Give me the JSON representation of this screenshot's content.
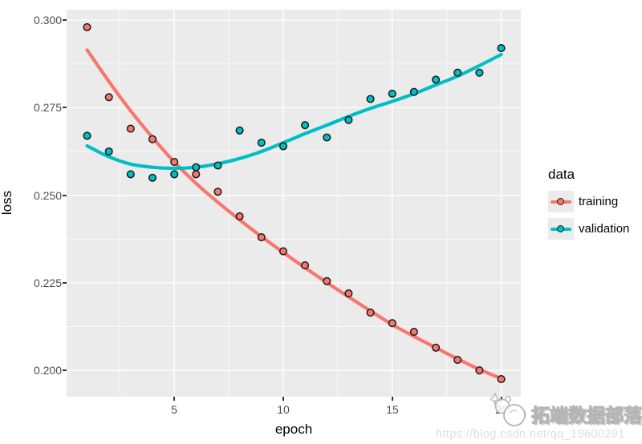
{
  "panel": {
    "background": "#EBEBEB",
    "grid_color": "#FFFFFF",
    "tick_color": "#333333",
    "tick_label_color": "#4D4D4D"
  },
  "chart_data": {
    "type": "scatter",
    "title": "",
    "xlabel": "epoch",
    "ylabel": "loss",
    "legend_title": "data",
    "legend_position": "right",
    "grid": true,
    "x": [
      1,
      2,
      3,
      4,
      5,
      6,
      7,
      8,
      9,
      10,
      11,
      12,
      13,
      14,
      15,
      16,
      17,
      18,
      19,
      20
    ],
    "xlim": [
      0.06,
      20.9
    ],
    "ylim": [
      0.1925,
      0.303
    ],
    "x_major_ticks": [
      {
        "value": 5,
        "label": "5"
      },
      {
        "value": 10,
        "label": "10"
      },
      {
        "value": 15,
        "label": "15"
      },
      {
        "value": 20,
        "label": "20"
      }
    ],
    "x_minor_ticks": [
      2.5,
      7.5,
      12.5,
      17.5
    ],
    "y_major_ticks": [
      {
        "value": 0.3,
        "label": "0.300"
      },
      {
        "value": 0.275,
        "label": "0.275"
      },
      {
        "value": 0.25,
        "label": "0.250"
      },
      {
        "value": 0.225,
        "label": "0.225"
      },
      {
        "value": 0.2,
        "label": "0.200"
      }
    ],
    "y_minor_ticks": [
      0.2875,
      0.2625,
      0.2375,
      0.2125
    ],
    "series": [
      {
        "name": "training",
        "color": "#F8766D",
        "points": [
          0.298,
          0.278,
          0.269,
          0.266,
          0.2595,
          0.256,
          0.251,
          0.244,
          0.238,
          0.234,
          0.23,
          0.2255,
          0.222,
          0.2165,
          0.2135,
          0.211,
          0.2065,
          0.203,
          0.2,
          0.1975
        ],
        "smooth": [
          0.2915,
          0.2825,
          0.2741,
          0.2665,
          0.2595,
          0.2534,
          0.248,
          0.243,
          0.2382,
          0.2337,
          0.2293,
          0.2251,
          0.221,
          0.217,
          0.2131,
          0.2097,
          0.2065,
          0.2033,
          0.2003,
          0.1977
        ]
      },
      {
        "name": "validation",
        "color": "#00BFC4",
        "points": [
          0.267,
          0.2625,
          0.256,
          0.255,
          0.256,
          0.258,
          0.2585,
          0.2685,
          0.265,
          0.264,
          0.27,
          0.2665,
          0.2715,
          0.2775,
          0.279,
          0.2795,
          0.283,
          0.285,
          0.285,
          0.292
        ],
        "smooth": [
          0.2641,
          0.261,
          0.2589,
          0.258,
          0.2577,
          0.258,
          0.259,
          0.2605,
          0.2625,
          0.265,
          0.2676,
          0.27,
          0.2725,
          0.2748,
          0.2768,
          0.279,
          0.2815,
          0.284,
          0.287,
          0.2902
        ]
      }
    ]
  },
  "watermark": {
    "brand": "拓端数据部落",
    "url": "https://blog.csdn.net/qq_19600291"
  }
}
